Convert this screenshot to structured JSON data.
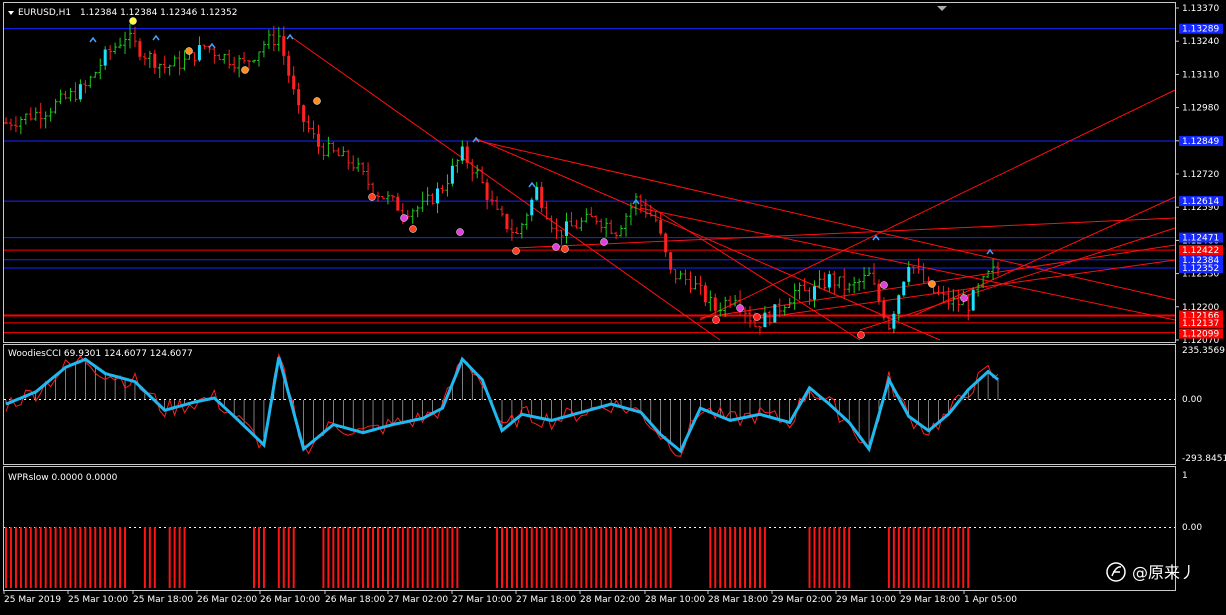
{
  "header": {
    "symbol": "EURUSD,H1",
    "ohlc": "1.12384 1.12384 1.12346 1.12352"
  },
  "main_axis": {
    "ticks": [
      "1.13370",
      "1.13240",
      "1.13110",
      "1.12980",
      "1.12850",
      "1.12720",
      "1.12590",
      "1.12460",
      "1.12330",
      "1.12200",
      "1.12070"
    ]
  },
  "price_tags": {
    "blue": [
      "1.13289",
      "1.12849",
      "1.12614",
      "1.12471",
      "1.12384",
      "1.12352"
    ],
    "red": [
      "1.12422",
      "1.12166",
      "1.12137",
      "1.12099"
    ]
  },
  "indicator1": {
    "label": "WoodiesCCI 69.9301 124.6077 124.6077",
    "axis": [
      "235.3569",
      "0.00",
      "-293.8451"
    ]
  },
  "indicator2": {
    "label": "WPRslow 0.0000 0.0000",
    "axis": [
      "1",
      "0.00",
      "-1"
    ]
  },
  "time_axis": [
    "25 Mar 2019",
    "25 Mar 10:00",
    "25 Mar 18:00",
    "26 Mar 02:00",
    "26 Mar 10:00",
    "26 Mar 18:00",
    "27 Mar 02:00",
    "27 Mar 10:00",
    "27 Mar 18:00",
    "28 Mar 02:00",
    "28 Mar 10:00",
    "28 Mar 18:00",
    "29 Mar 02:00",
    "29 Mar 10:00",
    "29 Mar 18:00",
    "1 Apr 05:00"
  ],
  "watermark": "@原来丿",
  "colors": {
    "background": "#000000",
    "bull_candle": "#1fcc1f",
    "bear_candle": "#ff2020",
    "cci_line": "#1fb8f0",
    "cci_signal": "#ff2020",
    "hline_blue": "#1428ff",
    "hline_red": "#ff0000",
    "trend_red": "#ff1010"
  },
  "chart_data": {
    "type": "candlestick",
    "symbol": "EURUSD",
    "timeframe": "H1",
    "price_range": [
      1.1207,
      1.1337
    ],
    "horizontal_levels_blue": [
      1.13289,
      1.12849,
      1.12614,
      1.12471,
      1.12384,
      1.12352
    ],
    "horizontal_levels_red": [
      1.12422,
      1.12166,
      1.12137,
      1.12099
    ],
    "close_path": [
      [
        0,
        1.1292
      ],
      [
        8,
        1.1297
      ],
      [
        16,
        1.1306
      ],
      [
        20,
        1.1318
      ],
      [
        24,
        1.1326
      ],
      [
        28,
        1.1319
      ],
      [
        32,
        1.1314
      ],
      [
        36,
        1.1316
      ],
      [
        40,
        1.1322
      ],
      [
        44,
        1.1318
      ],
      [
        48,
        1.1315
      ],
      [
        52,
        1.1323
      ],
      [
        55,
        1.1326
      ],
      [
        59,
        1.1296
      ],
      [
        63,
        1.1283
      ],
      [
        67,
        1.1279
      ],
      [
        70,
        1.1276
      ],
      [
        74,
        1.1266
      ],
      [
        80,
        1.1258
      ],
      [
        84,
        1.1259
      ],
      [
        88,
        1.1267
      ],
      [
        92,
        1.128
      ],
      [
        95,
        1.1272
      ],
      [
        99,
        1.1256
      ],
      [
        103,
        1.1248
      ],
      [
        107,
        1.1266
      ],
      [
        111,
        1.1249
      ],
      [
        115,
        1.1252
      ],
      [
        119,
        1.1255
      ],
      [
        123,
        1.125
      ],
      [
        127,
        1.1262
      ],
      [
        131,
        1.1254
      ],
      [
        134,
        1.1233
      ],
      [
        138,
        1.123
      ],
      [
        143,
        1.1219
      ],
      [
        147,
        1.1225
      ],
      [
        151,
        1.1213
      ],
      [
        155,
        1.1218
      ],
      [
        159,
        1.1226
      ],
      [
        162,
        1.1225
      ],
      [
        166,
        1.1231
      ],
      [
        170,
        1.1227
      ],
      [
        174,
        1.1232
      ],
      [
        178,
        1.1213
      ],
      [
        182,
        1.1238
      ],
      [
        186,
        1.1227
      ],
      [
        190,
        1.1222
      ],
      [
        194,
        1.1221
      ],
      [
        198,
        1.1232
      ],
      [
        200,
        1.1235
      ]
    ],
    "cci_path": [
      [
        0,
        -20
      ],
      [
        6,
        40
      ],
      [
        12,
        160
      ],
      [
        16,
        200
      ],
      [
        20,
        130
      ],
      [
        26,
        90
      ],
      [
        32,
        -50
      ],
      [
        38,
        -10
      ],
      [
        42,
        10
      ],
      [
        46,
        -80
      ],
      [
        52,
        -220
      ],
      [
        55,
        210
      ],
      [
        60,
        -240
      ],
      [
        66,
        -120
      ],
      [
        72,
        -160
      ],
      [
        78,
        -120
      ],
      [
        84,
        -90
      ],
      [
        88,
        -40
      ],
      [
        92,
        200
      ],
      [
        96,
        100
      ],
      [
        100,
        -150
      ],
      [
        104,
        -70
      ],
      [
        110,
        -100
      ],
      [
        116,
        -60
      ],
      [
        122,
        -20
      ],
      [
        128,
        -60
      ],
      [
        132,
        -170
      ],
      [
        136,
        -250
      ],
      [
        140,
        -40
      ],
      [
        146,
        -100
      ],
      [
        152,
        -70
      ],
      [
        158,
        -110
      ],
      [
        162,
        60
      ],
      [
        166,
        -20
      ],
      [
        170,
        -110
      ],
      [
        174,
        -240
      ],
      [
        178,
        100
      ],
      [
        182,
        -80
      ],
      [
        186,
        -150
      ],
      [
        190,
        -70
      ],
      [
        194,
        50
      ],
      [
        198,
        140
      ],
      [
        200,
        100
      ]
    ],
    "cci_range": [
      -293.8451,
      235.3569
    ],
    "wpr_bar_ranges": [
      [
        0,
        24
      ],
      [
        28,
        30
      ],
      [
        33,
        36
      ],
      [
        50,
        52
      ],
      [
        55,
        58
      ],
      [
        64,
        91
      ],
      [
        99,
        134
      ],
      [
        142,
        153
      ],
      [
        162,
        170
      ],
      [
        178,
        194
      ]
    ]
  }
}
